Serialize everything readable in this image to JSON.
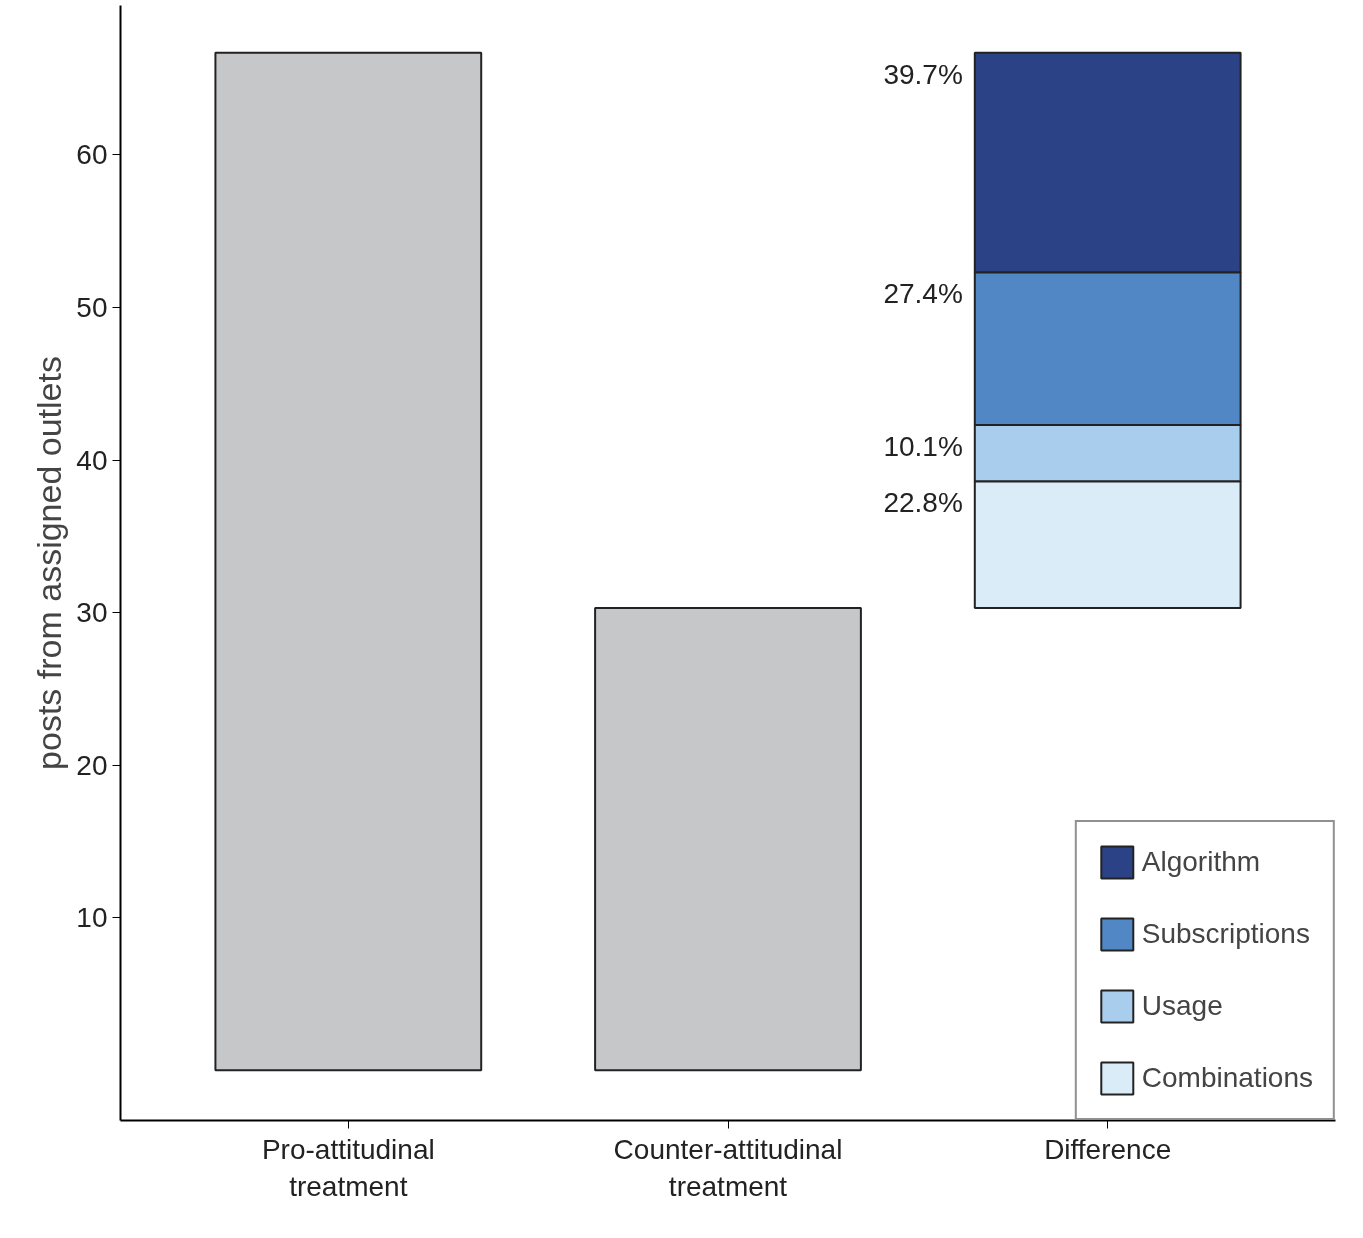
{
  "chart_data": {
    "type": "bar",
    "ylabel": "posts from assigned outlets",
    "categories": [
      "Pro-attitudinal\ntreatment",
      "Counter-attitudinal\ntreatment",
      "Difference"
    ],
    "series": [
      {
        "color": "#c6c7c9",
        "values": [
          66.7,
          30.3,
          null
        ]
      },
      {
        "name": "Algorithm",
        "color": "#2b4386",
        "values": [
          null,
          null,
          14.4
        ],
        "base": [
          null,
          null,
          52.3
        ]
      },
      {
        "name": "Subscriptions",
        "color": "#5187c4",
        "values": [
          null,
          null,
          10.0
        ],
        "base": [
          null,
          null,
          42.3
        ]
      },
      {
        "name": "Usage",
        "color": "#a9cdec",
        "values": [
          null,
          null,
          3.7
        ],
        "base": [
          null,
          null,
          38.6
        ]
      },
      {
        "name": "Combinations",
        "color": "#dbecf9",
        "values": [
          null,
          null,
          8.3
        ],
        "base": [
          null,
          null,
          30.3
        ]
      }
    ],
    "annotations": [
      "39.7%",
      "27.4%",
      "10.1%",
      "22.8%"
    ],
    "ylim": [
      -3.3,
      69.8
    ],
    "yticks": [
      10,
      20,
      30,
      40,
      50,
      60
    ],
    "grid": false,
    "legend": "bottom right"
  }
}
